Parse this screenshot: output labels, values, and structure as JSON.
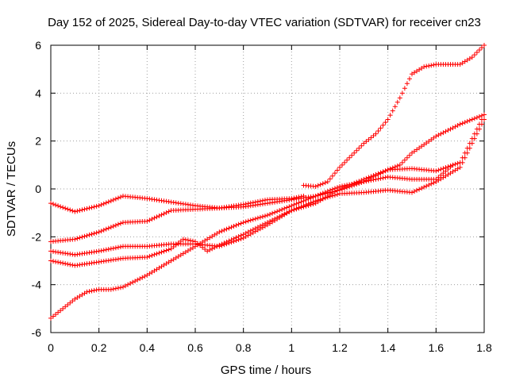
{
  "chart_data": {
    "type": "scatter",
    "title": "Day 152 of 2025, Sidereal Day-to-day VTEC variation (SDTVAR) for receiver cn23",
    "xlabel": "GPS time / hours",
    "ylabel": "SDTVAR / TECUs",
    "xlim": [
      0,
      1.8
    ],
    "ylim": [
      -6,
      6
    ],
    "x_ticks": [
      "0",
      "0.2",
      "0.4",
      "0.6",
      "0.8",
      "1",
      "1.2",
      "1.4",
      "1.6",
      "1.8"
    ],
    "y_ticks": [
      "-6",
      "-4",
      "-2",
      "0",
      "2",
      "4",
      "6"
    ],
    "grid": true,
    "marker": "+",
    "color": "#ff0000",
    "series": [
      {
        "x": [
          0.0,
          0.1,
          0.2,
          0.3,
          0.4,
          0.5,
          0.6,
          0.7,
          0.8,
          0.9,
          1.0,
          1.05
        ],
        "values": [
          -0.6,
          -0.95,
          -0.7,
          -0.3,
          -0.4,
          -0.55,
          -0.7,
          -0.8,
          -0.65,
          -0.45,
          -0.4,
          -0.3
        ]
      },
      {
        "x": [
          1.05,
          1.1,
          1.15,
          1.2,
          1.25,
          1.3,
          1.35,
          1.4,
          1.45,
          1.5,
          1.55,
          1.6,
          1.65,
          1.7,
          1.75,
          1.8
        ],
        "values": [
          0.15,
          0.1,
          0.3,
          0.9,
          1.4,
          1.9,
          2.3,
          2.9,
          3.8,
          4.8,
          5.1,
          5.2,
          5.2,
          5.2,
          5.5,
          6.0
        ]
      },
      {
        "x": [
          0.0,
          0.1,
          0.2,
          0.3,
          0.4,
          0.5,
          0.6,
          0.7,
          0.8,
          0.9,
          1.0,
          1.1,
          1.2,
          1.3,
          1.4,
          1.5,
          1.6,
          1.7,
          1.8
        ],
        "values": [
          -2.2,
          -2.1,
          -1.8,
          -1.4,
          -1.35,
          -0.9,
          -0.85,
          -0.8,
          -0.75,
          -0.6,
          -0.45,
          -0.3,
          -0.05,
          0.3,
          0.8,
          0.85,
          0.75,
          1.1,
          3.1
        ]
      },
      {
        "x": [
          0.0,
          0.1,
          0.2,
          0.3,
          0.4,
          0.5,
          0.6,
          0.7,
          0.8,
          0.9,
          1.0,
          1.1,
          1.2,
          1.3,
          1.4,
          1.45,
          1.5,
          1.6,
          1.7,
          1.8
        ],
        "values": [
          -2.6,
          -2.75,
          -2.6,
          -2.4,
          -2.4,
          -2.3,
          -2.3,
          -2.4,
          -2.05,
          -1.5,
          -0.9,
          -0.6,
          0.0,
          0.4,
          0.8,
          1.0,
          1.5,
          2.2,
          2.7,
          3.1
        ]
      },
      {
        "x": [
          0.0,
          0.1,
          0.2,
          0.3,
          0.4,
          0.5,
          0.55,
          0.6,
          0.65,
          0.7,
          0.8,
          0.9,
          1.0,
          1.1,
          1.2,
          1.3,
          1.4,
          1.5,
          1.6,
          1.7,
          1.8
        ],
        "values": [
          -3.0,
          -3.2,
          -3.05,
          -2.9,
          -2.85,
          -2.5,
          -2.1,
          -2.2,
          -2.6,
          -2.35,
          -1.9,
          -1.4,
          -0.9,
          -0.5,
          -0.2,
          -0.15,
          -0.05,
          -0.15,
          0.3,
          0.9,
          2.9
        ]
      },
      {
        "x": [
          0.0,
          0.05,
          0.1,
          0.15,
          0.2,
          0.25,
          0.3,
          0.4,
          0.5,
          0.6,
          0.7,
          0.8,
          0.9,
          1.0,
          1.1,
          1.2,
          1.3,
          1.4,
          1.5,
          1.6,
          1.67
        ],
        "values": [
          -5.4,
          -5.0,
          -4.6,
          -4.3,
          -4.2,
          -4.2,
          -4.1,
          -3.6,
          -3.0,
          -2.4,
          -1.8,
          -1.4,
          -1.1,
          -0.7,
          -0.3,
          0.1,
          0.3,
          0.5,
          0.4,
          0.4,
          1.0
        ]
      }
    ]
  }
}
